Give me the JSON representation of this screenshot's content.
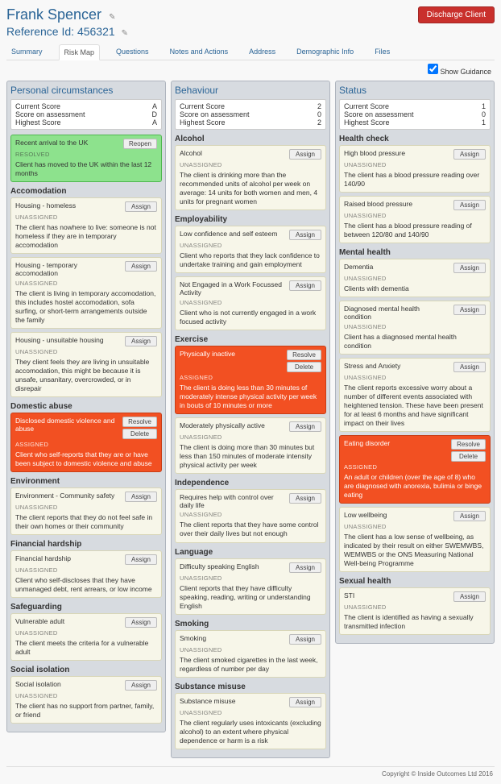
{
  "header": {
    "client_name": "Frank Spencer",
    "ref_label": "Reference Id:",
    "ref_value": "456321",
    "discharge_label": "Discharge Client"
  },
  "tabs": [
    "Summary",
    "Risk Map",
    "Questions",
    "Notes and Actions",
    "Address",
    "Demographic Info",
    "Files"
  ],
  "active_tab": 1,
  "guidance_label": "Show Guidance",
  "score_labels": [
    "Current Score",
    "Score on assessment",
    "Highest Score"
  ],
  "btn_labels": {
    "assign": "Assign",
    "resolve": "Resolve",
    "delete": "Delete",
    "reopen": "Reopen"
  },
  "status_labels": {
    "unassigned": "UNASSIGNED",
    "assigned": "ASSIGNED",
    "resolved": "RESOLVED"
  },
  "columns": [
    {
      "title": "Personal circumstances",
      "scores": [
        "A",
        "D",
        "A"
      ],
      "categories": [
        {
          "title": "",
          "cards": [
            {
              "style": "green",
              "title": "Recent arrival to the UK",
              "status": "resolved",
              "desc": "Client has moved to the UK within the last 12 months",
              "btns": [
                "reopen"
              ]
            }
          ]
        },
        {
          "title": "Accomodation",
          "cards": [
            {
              "style": "default",
              "title": "Housing - homeless",
              "status": "unassigned",
              "desc": "The client has nowhere to live: someone is not homeless if they are in temporary accomodation",
              "btns": [
                "assign"
              ]
            },
            {
              "style": "default",
              "title": "Housing - temporary accomodation",
              "status": "unassigned",
              "desc": "The client is living in temporary accomodation, this includes hostel accomodation, sofa surfing, or short-term arrangements outside the family",
              "btns": [
                "assign"
              ]
            },
            {
              "style": "default",
              "title": "Housing - unsuitable housing",
              "status": "unassigned",
              "desc": "They client feels they are living in unsuitable accomodation, this might be because it is unsafe, unsanitary, overcrowded, or in disrepair",
              "btns": [
                "assign"
              ]
            }
          ]
        },
        {
          "title": "Domestic abuse",
          "cards": [
            {
              "style": "red",
              "title": "Disclosed domestic violence and abuse",
              "status": "assigned",
              "desc": "Client who self-reports that they are or have been subject to domestic violence and abuse",
              "btns": [
                "resolve",
                "delete"
              ]
            }
          ]
        },
        {
          "title": "Environment",
          "cards": [
            {
              "style": "default",
              "title": "Environment - Community safety",
              "status": "unassigned",
              "desc": "The client reports that they do not feel safe in their own homes or their community",
              "btns": [
                "assign"
              ]
            }
          ]
        },
        {
          "title": "Financial hardship",
          "cards": [
            {
              "style": "default",
              "title": "Financial hardship",
              "status": "unassigned",
              "desc": "Client who self-discloses that they have unmanaged debt, rent arrears, or low income",
              "btns": [
                "assign"
              ]
            }
          ]
        },
        {
          "title": "Safeguarding",
          "cards": [
            {
              "style": "default",
              "title": "Vulnerable adult",
              "status": "unassigned",
              "desc": "The client meets the criteria for a vulnerable adult",
              "btns": [
                "assign"
              ]
            }
          ]
        },
        {
          "title": "Social isolation",
          "cards": [
            {
              "style": "default",
              "title": "Social isolation",
              "status": "unassigned",
              "desc": "The client has no support from partner, family, or friend",
              "btns": [
                "assign"
              ]
            }
          ]
        }
      ]
    },
    {
      "title": "Behaviour",
      "scores": [
        "2",
        "0",
        "2"
      ],
      "categories": [
        {
          "title": "Alcohol",
          "cards": [
            {
              "style": "default",
              "title": "Alcohol",
              "status": "unassigned",
              "desc": "The client is drinking more than the recommended units of alcohol per week on average: 14 units for both women and men, 4 units for pregnant women",
              "btns": [
                "assign"
              ]
            }
          ]
        },
        {
          "title": "Employability",
          "cards": [
            {
              "style": "default",
              "title": "Low confidence and self esteem",
              "status": "unassigned",
              "desc": "Client who reports that they lack confidence to undertake training and gain employment",
              "btns": [
                "assign"
              ]
            },
            {
              "style": "default",
              "title": "Not Engaged in a Work Focussed Activity",
              "status": "unassigned",
              "desc": "Client who is not currently engaged in a work focused activity",
              "btns": [
                "assign"
              ]
            }
          ]
        },
        {
          "title": "Exercise",
          "cards": [
            {
              "style": "red",
              "title": "Physically inactive",
              "status": "assigned",
              "desc": "The client is doing less than 30 minutes of moderately intense physical activity per week in bouts of 10 minutes or more",
              "btns": [
                "resolve",
                "delete"
              ]
            },
            {
              "style": "default",
              "title": "Moderately physically active",
              "status": "unassigned",
              "desc": "The client is doing more than 30 minutes but less than 150 minutes of moderate intensity physical activity per week",
              "btns": [
                "assign"
              ]
            }
          ]
        },
        {
          "title": "Independence",
          "cards": [
            {
              "style": "default",
              "title": "Requires help with control over daily life",
              "status": "unassigned",
              "desc": "The client reports that they have some control over their daily lives but not enough",
              "btns": [
                "assign"
              ]
            }
          ]
        },
        {
          "title": "Language",
          "cards": [
            {
              "style": "default",
              "title": "Difficulty speaking English",
              "status": "unassigned",
              "desc": "Client reports that they have difficulty speaking, reading, writing or understanding English",
              "btns": [
                "assign"
              ]
            }
          ]
        },
        {
          "title": "Smoking",
          "cards": [
            {
              "style": "default",
              "title": "Smoking",
              "status": "unassigned",
              "desc": "The client smoked cigarettes in the last week, regardless of number per day",
              "btns": [
                "assign"
              ]
            }
          ]
        },
        {
          "title": "Substance misuse",
          "cards": [
            {
              "style": "default",
              "title": "Substance misuse",
              "status": "unassigned",
              "desc": "The client regularly uses intoxicants (excluding alcohol) to an extent where physical dependence or harm is a risk",
              "btns": [
                "assign"
              ]
            }
          ]
        }
      ]
    },
    {
      "title": "Status",
      "scores": [
        "1",
        "0",
        "1"
      ],
      "categories": [
        {
          "title": "Health check",
          "cards": [
            {
              "style": "default",
              "title": "High blood pressure",
              "status": "unassigned",
              "desc": "The client has a blood pressure reading over 140/90",
              "btns": [
                "assign"
              ]
            },
            {
              "style": "default",
              "title": "Raised blood pressure",
              "status": "unassigned",
              "desc": "The client has a blood pressure reading of between 120/80 and 140/90",
              "btns": [
                "assign"
              ]
            }
          ]
        },
        {
          "title": "Mental health",
          "cards": [
            {
              "style": "default",
              "title": "Dementia",
              "status": "unassigned",
              "desc": "Clients with dementia",
              "btns": [
                "assign"
              ]
            },
            {
              "style": "default",
              "title": "Diagnosed mental health condition",
              "status": "unassigned",
              "desc": "Client has a diagnosed mental health condition",
              "btns": [
                "assign"
              ]
            },
            {
              "style": "default",
              "title": "Stress and Anxiety",
              "status": "unassigned",
              "desc": "The client reports excessive worry about a number of different events associated with heightened tension. These have been present for at least 6 months and have significant impact on their lives",
              "btns": [
                "assign"
              ]
            },
            {
              "style": "red",
              "title": "Eating disorder",
              "status": "assigned",
              "desc": "An adult or children (over the age of 8) who are diagnosed with anorexia, bulimia or binge eating",
              "btns": [
                "resolve",
                "delete"
              ]
            },
            {
              "style": "default",
              "title": "Low wellbeing",
              "status": "unassigned",
              "desc": "The client has a low sense of wellbeing, as indicated by their result on either SWEMWBS, WEMWBS or the ONS Measuring National Well-being Programme",
              "btns": [
                "assign"
              ]
            }
          ]
        },
        {
          "title": "Sexual health",
          "cards": [
            {
              "style": "default",
              "title": "STI",
              "status": "unassigned",
              "desc": "The client is identified as having a sexually transmitted infection",
              "btns": [
                "assign"
              ]
            }
          ]
        }
      ]
    }
  ],
  "footer": "Copyright © Inside Outcomes Ltd 2016"
}
